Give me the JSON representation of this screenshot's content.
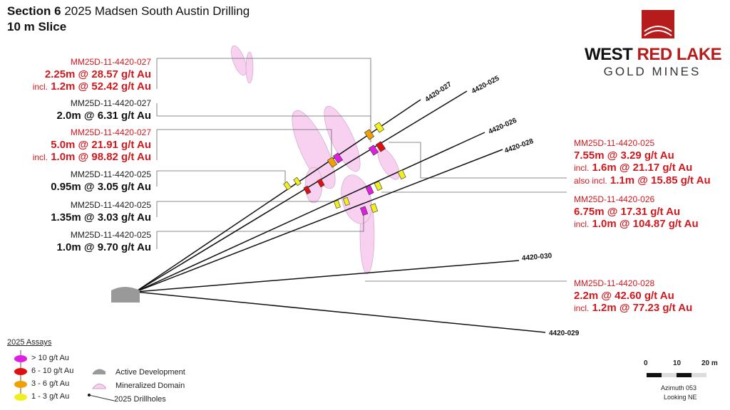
{
  "title": {
    "bold": "Section 6",
    "rest": "2025 Madsen South Austin Drilling",
    "subtitle": "10 m Slice"
  },
  "logo": {
    "line1a": "WEST",
    "line1b": "RED LAKE",
    "line2": "GOLD MINES"
  },
  "left_labels": [
    {
      "hole": "MM25D-11-4420-027",
      "red": true,
      "main": "2.25m @ 28.57 g/t Au",
      "incl_prefix": "incl.",
      "incl": "1.2m @ 52.42 g/t Au"
    },
    {
      "hole": "MM25D-11-4420-027",
      "red": false,
      "main": "2.0m @ 6.31 g/t Au"
    },
    {
      "hole": "MM25D-11-4420-027",
      "red": true,
      "main": "5.0m @ 21.91 g/t Au",
      "incl_prefix": "incl.",
      "incl": "1.0m @ 98.82 g/t Au"
    },
    {
      "hole": "MM25D-11-4420-025",
      "red": false,
      "main": "0.95m @ 3.05 g/t Au"
    },
    {
      "hole": "MM25D-11-4420-025",
      "red": false,
      "main": "1.35m @ 3.03 g/t Au"
    },
    {
      "hole": "MM25D-11-4420-025",
      "red": false,
      "main": "1.0m @ 9.70 g/t Au"
    }
  ],
  "right_labels": [
    {
      "hole": "MM25D-11-4420-025",
      "main": "7.55m @ 3.29 g/t Au",
      "incl_prefix": "incl.",
      "incl": "1.6m @ 21.17 g/t Au",
      "incl2_prefix": "also incl.",
      "incl2": "1.1m @ 15.85 g/t Au"
    },
    {
      "hole": "MM25D-11-4420-026",
      "main": "6.75m @ 17.31 g/t Au",
      "incl_prefix": "incl.",
      "incl": "1.0m @ 104.87 g/t Au"
    },
    {
      "hole": "MM25D-11-4420-028",
      "main": "2.2m @ 42.60 g/t Au",
      "incl_prefix": "incl.",
      "incl": "1.2m @ 77.23 g/t Au"
    }
  ],
  "drillholes": [
    "4420-027",
    "4420-025",
    "4420-026",
    "4420-028",
    "4420-030",
    "4420-029"
  ],
  "legend": {
    "title": "2025 Assays",
    "items": [
      ">  10 g/t Au",
      "6 - 10 g/t Au",
      "3 - 6 g/t Au",
      "1 - 3 g/t Au"
    ],
    "colors": [
      "#e020e0",
      "#e01010",
      "#f0a000",
      "#f0f020"
    ],
    "active_dev": "Active Development",
    "domain": "Mineralized Domain",
    "drillholes": "2025 Drillholes"
  },
  "scale": {
    "t0": "0",
    "t10": "10",
    "t20": "20 m",
    "azimuth": "Azimuth 053",
    "looking": "Looking NE"
  }
}
